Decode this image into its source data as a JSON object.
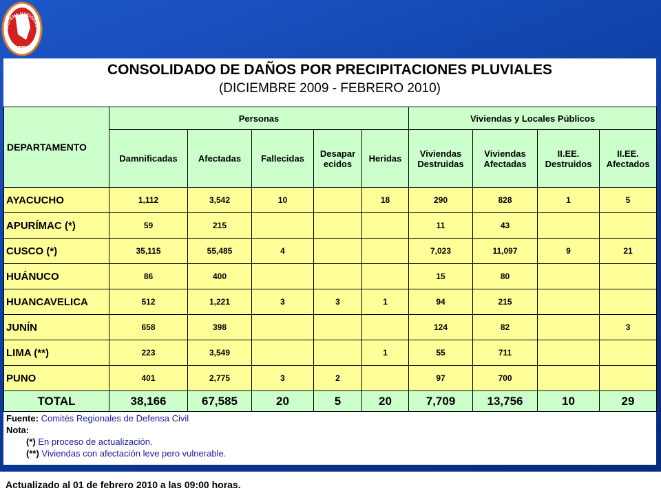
{
  "logo": {
    "ring": "SISTEMA NACIONAL DE DEFENSA CIVIL",
    "country": "PERU"
  },
  "header": {
    "title": "CONSOLIDADO DE DAÑOS POR PRECIPITACIONES PLUVIALES",
    "subtitle": "(DICIEMBRE 2009 - FEBRERO 2010)"
  },
  "table": {
    "corner": "DEPARTAMENTO",
    "groups": [
      "Personas",
      "Viviendas y Locales Públicos"
    ],
    "columns": [
      "Damnificadas",
      "Afectadas",
      "Fallecidas",
      "Desapar\necidos",
      "Heridas",
      "Viviendas Destruidas",
      "Viviendas Afectadas",
      "II.EE. Destruidos",
      "II.EE. Afectados"
    ],
    "rows": [
      [
        "AYACUCHO",
        "1,112",
        "3,542",
        "10",
        null,
        "18",
        "290",
        "828",
        "1",
        "5"
      ],
      [
        "APURÍMAC (*)",
        "59",
        "215",
        null,
        null,
        null,
        "11",
        "43",
        null,
        null
      ],
      [
        "CUSCO (*)",
        "35,115",
        "55,485",
        "4",
        null,
        null,
        "7,023",
        "11,097",
        "9",
        "21"
      ],
      [
        "HUÁNUCO",
        "86",
        "400",
        null,
        null,
        null,
        "15",
        "80",
        null,
        null
      ],
      [
        "HUANCAVELICA",
        "512",
        "1,221",
        "3",
        "3",
        "1",
        "94",
        "215",
        null,
        null
      ],
      [
        "JUNÍN",
        "658",
        "398",
        null,
        null,
        null,
        "124",
        "82",
        null,
        "3"
      ],
      [
        "LIMA (**)",
        "223",
        "3,549",
        null,
        null,
        "1",
        "55",
        "711",
        null,
        null
      ],
      [
        "PUNO",
        "401",
        "2,775",
        "3",
        "2",
        null,
        "97",
        "700",
        null,
        null
      ]
    ],
    "total": [
      "TOTAL",
      "38,166",
      "67,585",
      "20",
      "5",
      "20",
      "7,709",
      "13,756",
      "10",
      "29"
    ]
  },
  "notes": {
    "source_label": "Fuente:",
    "source": "Comités Regionales de Defensa Civil",
    "note_label": "Nota:",
    "items": [
      {
        "mark": "(*)",
        "text": "En proceso de actualización."
      },
      {
        "mark": "(**)",
        "text": "Viviendas con afectación leve pero vulnerable."
      }
    ]
  },
  "footer": "Actualizado al 01 de febrero 2010 a las 09:00 horas."
}
